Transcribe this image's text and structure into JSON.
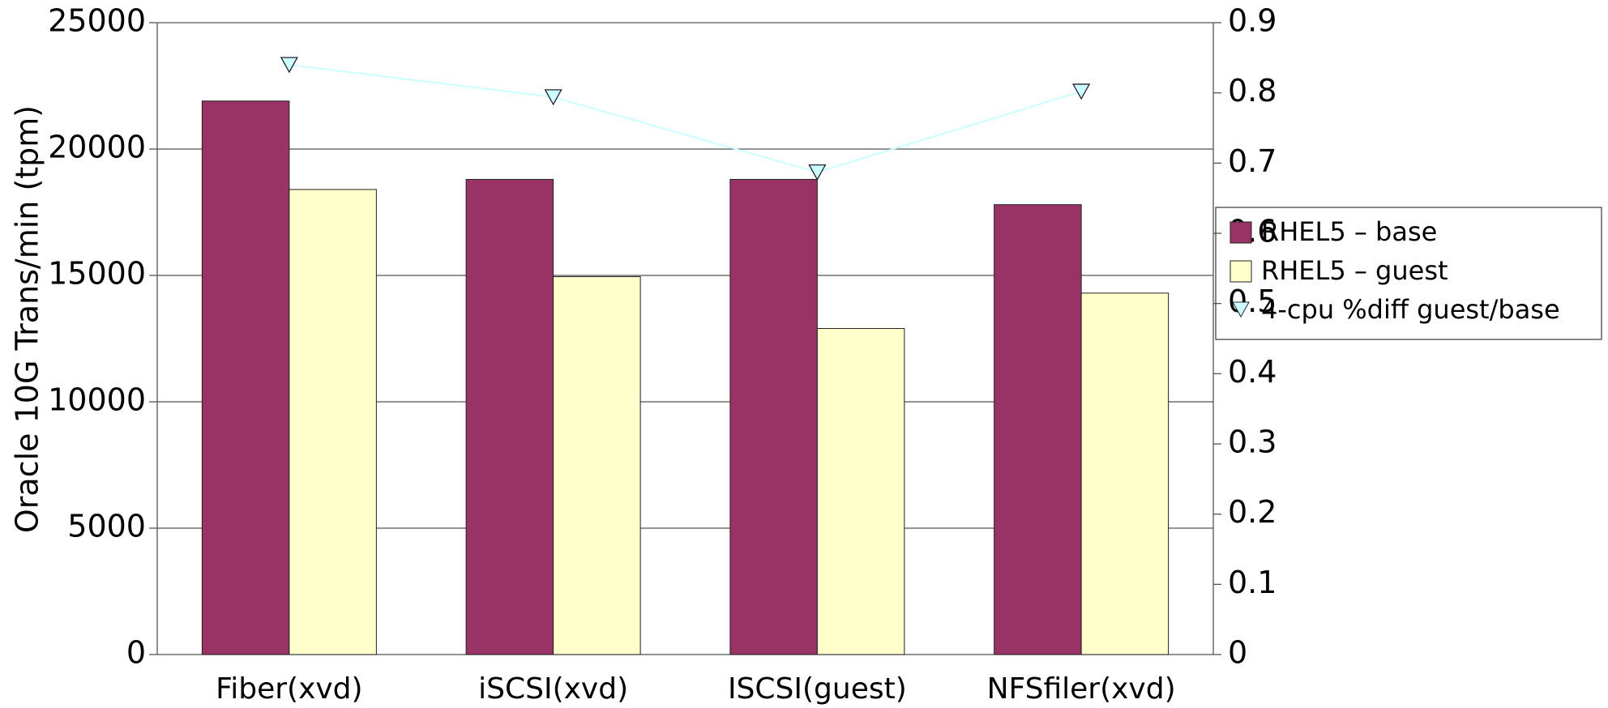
{
  "chart_data": {
    "type": "bar",
    "y_label": "Oracle 10G Trans/min (tpm)",
    "categories": [
      "Fiber(xvd)",
      "iSCSI(xvd)",
      "ISCSI(guest)",
      "NFSfiler(xvd)"
    ],
    "series": [
      {
        "name": "RHEL5 – base",
        "type": "bar",
        "color": "#993366",
        "values": [
          21900,
          18800,
          18800,
          17800
        ]
      },
      {
        "name": "RHEL5 – guest",
        "type": "bar",
        "color": "#ffffcc",
        "values": [
          18400,
          14950,
          12900,
          14300
        ]
      },
      {
        "name": "4-cpu %diff guest/base",
        "type": "line",
        "axis": "y2",
        "color": "#ccffff",
        "values": [
          0.84,
          0.794,
          0.687,
          0.802
        ]
      }
    ],
    "ylim": [
      0,
      25000
    ],
    "yticks": [
      0,
      5000,
      10000,
      15000,
      20000,
      25000
    ],
    "y2lim": [
      0,
      0.9
    ],
    "y2ticks": [
      0,
      0.1,
      0.2,
      0.3,
      0.4,
      0.5,
      0.6,
      0.7,
      0.8,
      0.9
    ],
    "grid": true,
    "legend": "right"
  }
}
